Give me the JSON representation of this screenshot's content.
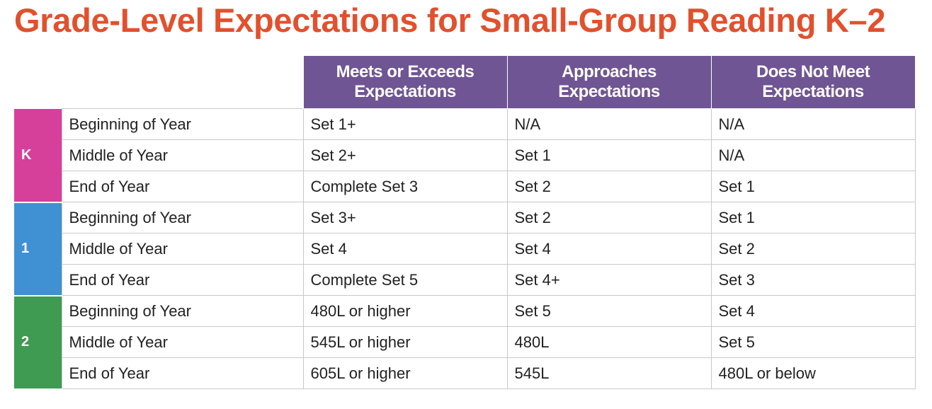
{
  "header": {
    "title": "Grade-Level Expectations for Small-Group Reading K–2"
  },
  "table": {
    "columns": [
      "Meets or Exceeds Expectations",
      "Approaches Expectations",
      "Does Not Meet Expectations"
    ],
    "groups": [
      {
        "grade": "K",
        "color": "#d6409b",
        "rows": [
          [
            "Beginning of Year",
            "Set 1+",
            "N/A",
            "N/A"
          ],
          [
            "Middle of Year",
            "Set 2+",
            "Set 1",
            "N/A"
          ],
          [
            "End of Year",
            "Complete Set 3",
            "Set 2",
            "Set 1"
          ]
        ]
      },
      {
        "grade": "1",
        "color": "#3f91d3",
        "rows": [
          [
            "Beginning of Year",
            "Set 3+",
            "Set 2",
            "Set 1"
          ],
          [
            "Middle of Year",
            "Set 4",
            "Set 4",
            "Set 2"
          ],
          [
            "End of Year",
            "Complete Set 5",
            "Set 4+",
            "Set 3"
          ]
        ]
      },
      {
        "grade": "2",
        "color": "#3f9a52",
        "rows": [
          [
            "Beginning of Year",
            "480L or higher",
            "Set 5",
            "Set 4"
          ],
          [
            "Middle of Year",
            "545L or higher",
            "480L",
            "Set 5"
          ],
          [
            "End of Year",
            "605L or higher",
            "545L",
            "480L or below"
          ]
        ]
      }
    ]
  }
}
